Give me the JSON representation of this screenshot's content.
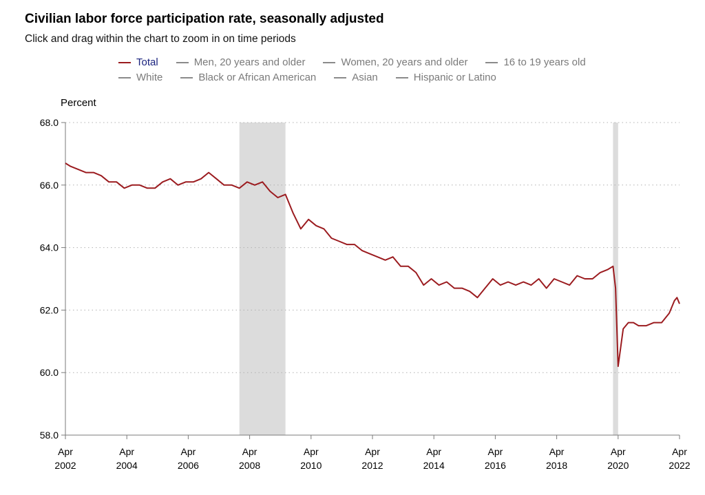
{
  "header": {
    "title": "Civilian labor force participation rate, seasonally adjusted",
    "subtitle": "Click and drag within the chart to zoom in on time periods"
  },
  "legend": {
    "row1": [
      {
        "label": "Total",
        "active": true
      },
      {
        "label": "Men, 20 years and older",
        "active": false
      },
      {
        "label": "Women, 20 years and older",
        "active": false
      },
      {
        "label": "16 to 19 years old",
        "active": false
      }
    ],
    "row2": [
      {
        "label": "White",
        "active": false
      },
      {
        "label": "Black or African American",
        "active": false
      },
      {
        "label": "Asian",
        "active": false
      },
      {
        "label": "Hispanic or Latino",
        "active": false
      }
    ]
  },
  "colors": {
    "series_total": "#9b1b1f",
    "recession_band": "#dcdcdc",
    "axis": "#7a7a7a",
    "gridline": "#b0b0b0",
    "legend_active_text": "#1a237e",
    "legend_inactive": "#7a7a7a"
  },
  "chart_data": {
    "type": "line",
    "title": "Civilian labor force participation rate, seasonally adjusted",
    "ylabel": "Percent",
    "xlabel": "",
    "ylim": [
      58.0,
      68.0
    ],
    "xlim": [
      "2002-04",
      "2022-04"
    ],
    "yticks": [
      "58.0",
      "60.0",
      "62.0",
      "64.0",
      "66.0",
      "68.0"
    ],
    "xticks": [
      {
        "month": "Apr",
        "year": "2002"
      },
      {
        "month": "Apr",
        "year": "2004"
      },
      {
        "month": "Apr",
        "year": "2006"
      },
      {
        "month": "Apr",
        "year": "2008"
      },
      {
        "month": "Apr",
        "year": "2010"
      },
      {
        "month": "Apr",
        "year": "2012"
      },
      {
        "month": "Apr",
        "year": "2014"
      },
      {
        "month": "Apr",
        "year": "2016"
      },
      {
        "month": "Apr",
        "year": "2018"
      },
      {
        "month": "Apr",
        "year": "2020"
      },
      {
        "month": "Apr",
        "year": "2022"
      }
    ],
    "grid": "horizontal dotted",
    "shaded_periods": [
      {
        "start": "2007-12",
        "end": "2009-06"
      },
      {
        "start": "2020-02",
        "end": "2020-04"
      }
    ],
    "series": [
      {
        "name": "Total",
        "x": [
          "2002-04",
          "2002-06",
          "2002-09",
          "2002-12",
          "2003-03",
          "2003-06",
          "2003-09",
          "2003-12",
          "2004-03",
          "2004-06",
          "2004-09",
          "2004-12",
          "2005-03",
          "2005-06",
          "2005-09",
          "2005-12",
          "2006-03",
          "2006-06",
          "2006-09",
          "2006-12",
          "2007-03",
          "2007-06",
          "2007-09",
          "2007-12",
          "2008-03",
          "2008-06",
          "2008-09",
          "2008-12",
          "2009-03",
          "2009-06",
          "2009-09",
          "2009-12",
          "2010-03",
          "2010-06",
          "2010-09",
          "2010-12",
          "2011-03",
          "2011-06",
          "2011-09",
          "2011-12",
          "2012-03",
          "2012-06",
          "2012-09",
          "2012-12",
          "2013-03",
          "2013-06",
          "2013-09",
          "2013-12",
          "2014-03",
          "2014-06",
          "2014-09",
          "2014-12",
          "2015-03",
          "2015-06",
          "2015-09",
          "2015-12",
          "2016-03",
          "2016-06",
          "2016-09",
          "2016-12",
          "2017-03",
          "2017-06",
          "2017-09",
          "2017-12",
          "2018-03",
          "2018-06",
          "2018-09",
          "2018-12",
          "2019-03",
          "2019-06",
          "2019-09",
          "2019-12",
          "2020-02",
          "2020-03",
          "2020-04",
          "2020-05",
          "2020-06",
          "2020-08",
          "2020-10",
          "2020-12",
          "2021-03",
          "2021-06",
          "2021-09",
          "2021-12",
          "2022-02",
          "2022-03",
          "2022-04"
        ],
        "values": [
          66.7,
          66.6,
          66.5,
          66.4,
          66.4,
          66.3,
          66.1,
          66.1,
          65.9,
          66.0,
          66.0,
          65.9,
          65.9,
          66.1,
          66.2,
          66.0,
          66.1,
          66.1,
          66.2,
          66.4,
          66.2,
          66.0,
          66.0,
          65.9,
          66.1,
          66.0,
          66.1,
          65.8,
          65.6,
          65.7,
          65.1,
          64.6,
          64.9,
          64.7,
          64.6,
          64.3,
          64.2,
          64.1,
          64.1,
          63.9,
          63.8,
          63.7,
          63.6,
          63.7,
          63.4,
          63.4,
          63.2,
          62.8,
          63.0,
          62.8,
          62.9,
          62.7,
          62.7,
          62.6,
          62.4,
          62.7,
          63.0,
          62.8,
          62.9,
          62.8,
          62.9,
          62.8,
          63.0,
          62.7,
          63.0,
          62.9,
          62.8,
          63.1,
          63.0,
          63.0,
          63.2,
          63.3,
          63.4,
          62.7,
          60.2,
          60.8,
          61.4,
          61.6,
          61.6,
          61.5,
          61.5,
          61.6,
          61.6,
          61.9,
          62.3,
          62.4,
          62.2
        ]
      }
    ]
  }
}
